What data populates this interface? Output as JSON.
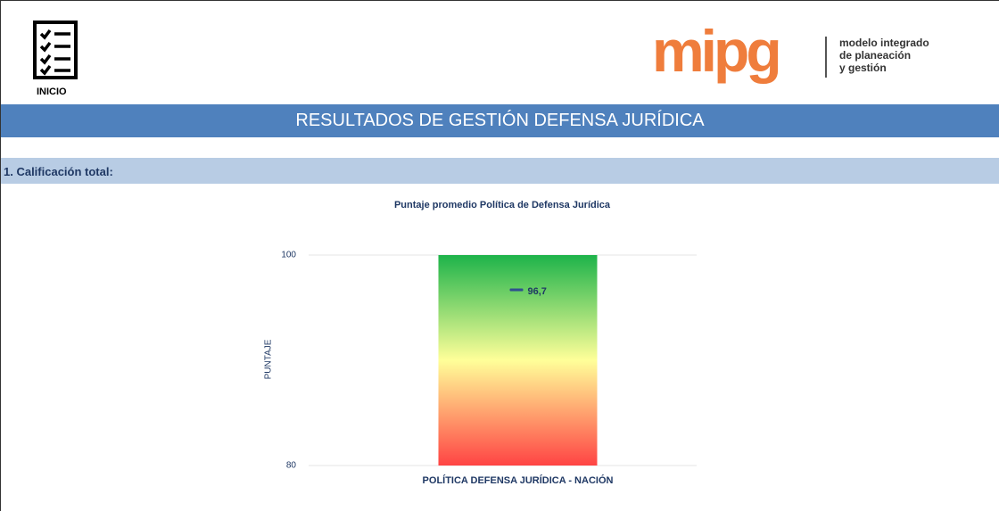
{
  "header": {
    "home": "INICIO",
    "logo": {
      "name": "mipg",
      "tagline": [
        "modelo integrado",
        "de planeación",
        "y gestión"
      ]
    },
    "banner": "RESULTADOS DE GESTIÓN DEFENSA JURÍDICA"
  },
  "section": "1. Calificación total:",
  "chart_data": {
    "type": "bullet",
    "title": "Puntaje promedio Política de Defensa Jurídica",
    "y_label": "PUNTAJE",
    "categories": [
      "POLÍTICA DEFENSA JURÍDICA - NACIÓN"
    ],
    "values": [
      96.7
    ],
    "value_labels": [
      "96,7"
    ],
    "ylim": [
      80,
      100
    ],
    "yticks": [
      80,
      100
    ],
    "color": "#2f4f8f",
    "band_colors": [
      "#ff4444",
      "#ffff99",
      "#1db34a"
    ]
  }
}
